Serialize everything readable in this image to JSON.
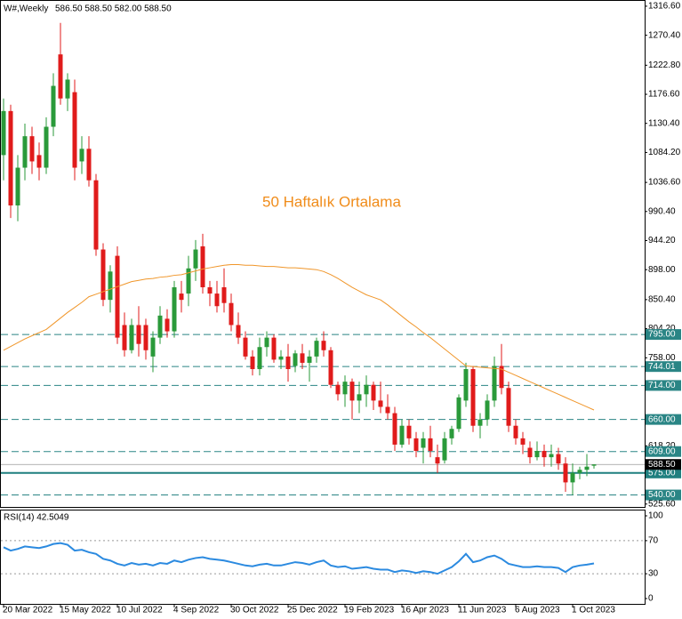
{
  "chart_data": {
    "type": "candlestick",
    "header_label": "W#,Weekly",
    "header_values": "586.50 588.50 582.00 588.50",
    "annotation": "50 Haftalık Ortalama",
    "categories": [
      "20 Mar 2022",
      null,
      null,
      null,
      null,
      null,
      null,
      null,
      "15 May 2022",
      null,
      null,
      null,
      null,
      null,
      null,
      null,
      "10 Jul 2022",
      null,
      null,
      null,
      null,
      null,
      null,
      null,
      "4 Sep 2022",
      null,
      null,
      null,
      null,
      null,
      null,
      null,
      "30 Oct 2022",
      null,
      null,
      null,
      null,
      null,
      null,
      null,
      "25 Dec 2022",
      null,
      null,
      null,
      null,
      null,
      null,
      null,
      "19 Feb 2023",
      null,
      null,
      null,
      null,
      null,
      null,
      null,
      "16 Apr 2023",
      null,
      null,
      null,
      null,
      null,
      null,
      null,
      "11 Jun 2023",
      null,
      null,
      null,
      null,
      null,
      null,
      null,
      "6 Aug 2023",
      null,
      null,
      null,
      null,
      null,
      null,
      null,
      "1 Oct 2023",
      null,
      null,
      null
    ],
    "ohlc": [
      [
        1080,
        1170,
        1040,
        1150
      ],
      [
        1150,
        1160,
        980,
        1000
      ],
      [
        1000,
        1080,
        975,
        1060
      ],
      [
        1060,
        1130,
        1040,
        1110
      ],
      [
        1110,
        1125,
        1050,
        1070
      ],
      [
        1080,
        1100,
        1040,
        1060
      ],
      [
        1060,
        1140,
        1050,
        1125
      ],
      [
        1125,
        1210,
        1110,
        1190
      ],
      [
        1240,
        1290,
        1160,
        1170
      ],
      [
        1170,
        1210,
        1150,
        1200
      ],
      [
        1180,
        1200,
        1040,
        1060
      ],
      [
        1070,
        1110,
        1050,
        1090
      ],
      [
        1090,
        1110,
        1030,
        1040
      ],
      [
        1040,
        1050,
        920,
        930
      ],
      [
        930,
        940,
        840,
        850
      ],
      [
        850,
        905,
        830,
        895
      ],
      [
        920,
        935,
        780,
        790
      ],
      [
        810,
        830,
        760,
        770
      ],
      [
        770,
        820,
        765,
        810
      ],
      [
        810,
        840,
        760,
        780
      ],
      [
        810,
        820,
        755,
        770
      ],
      [
        760,
        800,
        735,
        790
      ],
      [
        790,
        840,
        780,
        825
      ],
      [
        820,
        835,
        790,
        800
      ],
      [
        800,
        880,
        790,
        870
      ],
      [
        860,
        880,
        830,
        850
      ],
      [
        860,
        920,
        840,
        900
      ],
      [
        900,
        945,
        880,
        930
      ],
      [
        935,
        955,
        860,
        870
      ],
      [
        870,
        880,
        840,
        860
      ],
      [
        860,
        880,
        830,
        840
      ],
      [
        870,
        900,
        830,
        845
      ],
      [
        845,
        860,
        800,
        810
      ],
      [
        810,
        830,
        780,
        790
      ],
      [
        790,
        800,
        755,
        760
      ],
      [
        760,
        770,
        730,
        740
      ],
      [
        740,
        790,
        730,
        775
      ],
      [
        775,
        800,
        760,
        790
      ],
      [
        790,
        795,
        750,
        755
      ],
      [
        755,
        770,
        740,
        760
      ],
      [
        760,
        780,
        720,
        740
      ],
      [
        745,
        770,
        735,
        765
      ],
      [
        765,
        780,
        740,
        750
      ],
      [
        750,
        770,
        720,
        760
      ],
      [
        760,
        790,
        750,
        785
      ],
      [
        785,
        800,
        760,
        770
      ],
      [
        770,
        775,
        710,
        715
      ],
      [
        715,
        720,
        690,
        700
      ],
      [
        700,
        730,
        680,
        720
      ],
      [
        720,
        725,
        660,
        690
      ],
      [
        690,
        720,
        670,
        700
      ],
      [
        700,
        730,
        680,
        715
      ],
      [
        715,
        720,
        675,
        690
      ],
      [
        690,
        720,
        670,
        680
      ],
      [
        680,
        700,
        660,
        670
      ],
      [
        670,
        680,
        610,
        620
      ],
      [
        620,
        660,
        615,
        650
      ],
      [
        650,
        660,
        620,
        630
      ],
      [
        630,
        640,
        600,
        610
      ],
      [
        615,
        640,
        590,
        630
      ],
      [
        630,
        650,
        600,
        610
      ],
      [
        600,
        620,
        575,
        590
      ],
      [
        595,
        640,
        590,
        630
      ],
      [
        630,
        650,
        620,
        645
      ],
      [
        645,
        700,
        640,
        695
      ],
      [
        690,
        750,
        680,
        740
      ],
      [
        740,
        745,
        640,
        650
      ],
      [
        650,
        670,
        630,
        660
      ],
      [
        660,
        700,
        650,
        690
      ],
      [
        690,
        760,
        680,
        745
      ],
      [
        745,
        780,
        700,
        710
      ],
      [
        710,
        720,
        640,
        650
      ],
      [
        650,
        660,
        620,
        630
      ],
      [
        630,
        640,
        605,
        620
      ],
      [
        615,
        625,
        590,
        600
      ],
      [
        600,
        625,
        595,
        610
      ],
      [
        610,
        620,
        585,
        600
      ],
      [
        600,
        620,
        585,
        605
      ],
      [
        605,
        615,
        580,
        590
      ],
      [
        590,
        600,
        545,
        560
      ],
      [
        560,
        590,
        540,
        575
      ],
      [
        575,
        585,
        565,
        580
      ],
      [
        580,
        605,
        570,
        585
      ],
      [
        586.5,
        588.5,
        582,
        588.5
      ]
    ],
    "up_color": "#2a9a3a",
    "down_color": "#e01b1b",
    "ma": {
      "color": "#f0962a",
      "values": [
        770,
        776,
        782,
        788,
        793,
        798,
        803,
        812,
        821,
        830,
        838,
        846,
        855,
        859,
        863,
        867,
        871,
        875,
        879,
        881,
        883,
        884,
        886,
        887,
        889,
        890,
        893,
        896,
        899,
        901,
        903,
        905,
        906,
        906,
        905,
        905,
        904,
        903,
        903,
        902,
        901,
        901,
        900,
        899,
        898,
        895,
        890,
        884,
        877,
        870,
        864,
        858,
        854,
        850,
        842,
        833,
        824,
        815,
        807,
        798,
        790,
        781,
        772,
        763,
        754,
        745,
        744,
        743,
        742,
        741,
        740,
        735,
        730,
        725,
        720,
        715,
        710,
        705,
        700,
        695,
        690,
        685,
        680,
        675
      ]
    },
    "ylim": [
      521,
      1325
    ],
    "yticks": [
      {
        "value": 1316.6,
        "label": "1316.60"
      },
      {
        "value": 1270.4,
        "label": "1270.40"
      },
      {
        "value": 1222.8,
        "label": "1222.80"
      },
      {
        "value": 1176.6,
        "label": "1176.60"
      },
      {
        "value": 1130.4,
        "label": "1130.40"
      },
      {
        "value": 1084.2,
        "label": "1084.20"
      },
      {
        "value": 1036.6,
        "label": "1036.60"
      },
      {
        "value": 990.4,
        "label": "990.40"
      },
      {
        "value": 944.2,
        "label": "944.20"
      },
      {
        "value": 898,
        "label": "898.00"
      },
      {
        "value": 850.4,
        "label": "850.40"
      },
      {
        "value": 804.2,
        "label": "804.20"
      },
      {
        "value": 758,
        "label": "758.00"
      },
      {
        "value": 618.2,
        "label": "618.20"
      },
      {
        "value": 525.6,
        "label": "525.60"
      }
    ],
    "levels": [
      {
        "value": 795,
        "label": "795.00"
      },
      {
        "value": 744.01,
        "label": "744.01"
      },
      {
        "value": 714,
        "label": "714.00"
      },
      {
        "value": 660,
        "label": "660.00"
      },
      {
        "value": 609,
        "label": "609.00"
      },
      {
        "value": 540,
        "label": "540.00"
      }
    ],
    "support": {
      "value": 575,
      "label": "575.00",
      "color": "#1f7f7f"
    },
    "price": {
      "value": 588.5,
      "label": "588.50"
    },
    "level_color": "#2a8585",
    "rsi": {
      "title": "RSI(14) 42.5049",
      "color": "#2b8ae0",
      "values": [
        62,
        58,
        60,
        63,
        62,
        61,
        63,
        66,
        67,
        65,
        58,
        59,
        56,
        54,
        48,
        46,
        42,
        40,
        43,
        41,
        42,
        40,
        43,
        42,
        46,
        44,
        47,
        49,
        50,
        48,
        47,
        46,
        44,
        42,
        40,
        39,
        41,
        42,
        40,
        40,
        42,
        44,
        43,
        41,
        44,
        46,
        40,
        38,
        39,
        36,
        37,
        38,
        36,
        35,
        35,
        32,
        34,
        33,
        31,
        33,
        32,
        30,
        34,
        38,
        45,
        54,
        44,
        46,
        50,
        52,
        48,
        42,
        40,
        38,
        38,
        39,
        38,
        38,
        37,
        32,
        38,
        40,
        41,
        42.5049
      ],
      "ylim": [
        0,
        100
      ],
      "yticks": [
        100,
        70,
        30,
        0
      ],
      "levels": [
        70,
        30
      ]
    }
  }
}
